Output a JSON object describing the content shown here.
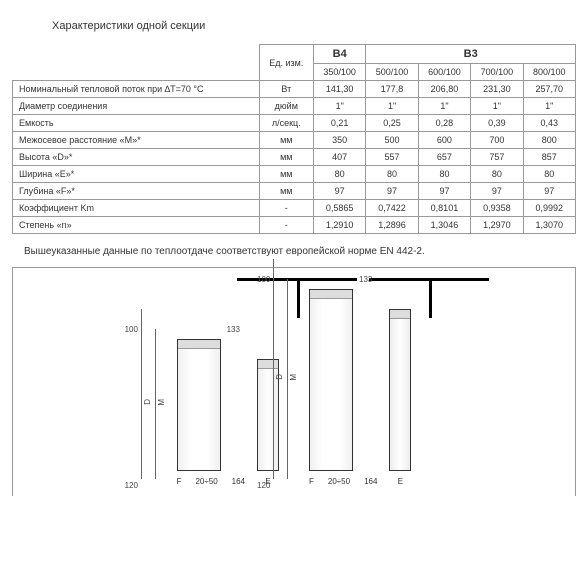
{
  "title": "Характеристики одной секции",
  "table": {
    "unit_header": "Ед. изм.",
    "groups": [
      "B4",
      "B3"
    ],
    "sizes": [
      "350/100",
      "500/100",
      "600/100",
      "700/100",
      "800/100"
    ],
    "rows": [
      {
        "label": "Номинальный тепловой поток при ∆T=70 °C",
        "unit": "Вт",
        "vals": [
          "141,30",
          "177,8",
          "206,80",
          "231,30",
          "257,70"
        ]
      },
      {
        "label": "Диаметр соединения",
        "unit": "дюйм",
        "vals": [
          "1\"",
          "1\"",
          "1\"",
          "1\"",
          "1\""
        ]
      },
      {
        "label": "Емкость",
        "unit": "л/секц.",
        "vals": [
          "0,21",
          "0,25",
          "0,28",
          "0,39",
          "0,43"
        ]
      },
      {
        "label": "Межосевое расстояние «M»*",
        "unit": "мм",
        "vals": [
          "350",
          "500",
          "600",
          "700",
          "800"
        ]
      },
      {
        "label": "Высота «D»*",
        "unit": "мм",
        "vals": [
          "407",
          "557",
          "657",
          "757",
          "857"
        ]
      },
      {
        "label": "Ширина «E»*",
        "unit": "мм",
        "vals": [
          "80",
          "80",
          "80",
          "80",
          "80"
        ]
      },
      {
        "label": "Глубина «F»*",
        "unit": "мм",
        "vals": [
          "97",
          "97",
          "97",
          "97",
          "97"
        ]
      },
      {
        "label": "Коэффициент Km",
        "unit": "-",
        "vals": [
          "0,5865",
          "0,7422",
          "0,8101",
          "0,9358",
          "0,9992"
        ]
      },
      {
        "label": "Степень «n»",
        "unit": "-",
        "vals": [
          "1,2910",
          "1,2896",
          "1,3046",
          "1,2970",
          "1,3070"
        ]
      }
    ]
  },
  "note": "Вышеуказанные данные по теплоотдаче соответствуют европейской норме EN 442-2.",
  "diag": {
    "d100": "100",
    "d120": "120",
    "d133": "133",
    "d164": "164",
    "d2050": "20÷50",
    "F": "F",
    "E": "E",
    "D": "D",
    "M": "M"
  }
}
